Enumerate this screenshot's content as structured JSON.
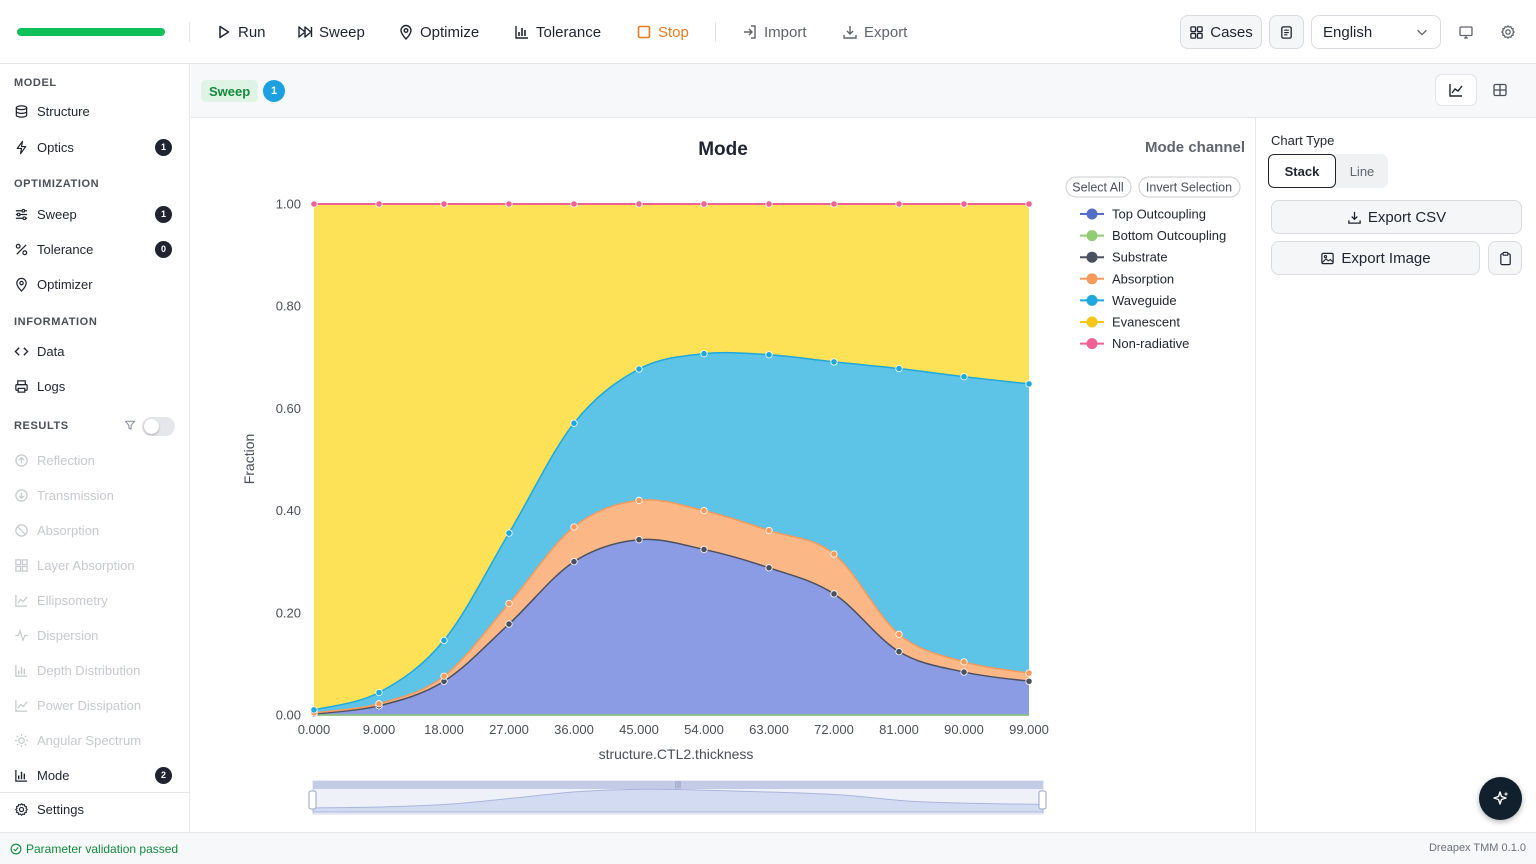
{
  "toolbar": {
    "progress": 1.0,
    "run": "Run",
    "sweep": "Sweep",
    "optimize": "Optimize",
    "tolerance": "Tolerance",
    "stop": "Stop",
    "import": "Import",
    "export": "Export",
    "cases": "Cases",
    "language": "English"
  },
  "sidebar": {
    "model_heading": "MODEL",
    "structure": "Structure",
    "optics": "Optics",
    "optics_count": "1",
    "optimization_heading": "OPTIMIZATION",
    "sweep": "Sweep",
    "sweep_count": "1",
    "tolerance": "Tolerance",
    "tolerance_count": "0",
    "optimizer": "Optimizer",
    "information_heading": "INFORMATION",
    "data": "Data",
    "logs": "Logs",
    "results_heading": "RESULTS",
    "results_toggle_on": false,
    "reflection": "Reflection",
    "transmission": "Transmission",
    "absorption": "Absorption",
    "layer_absorption": "Layer Absorption",
    "ellipsometry": "Ellipsometry",
    "dispersion": "Dispersion",
    "depth_distribution": "Depth Distribution",
    "power_dissipation": "Power Dissipation",
    "angular_spectrum": "Angular Spectrum",
    "mode": "Mode",
    "mode_count": "2",
    "settings": "Settings"
  },
  "subbar": {
    "tag": "Sweep",
    "tag_count": "1"
  },
  "legend": {
    "select_all": "Select All",
    "invert_selection": "Invert Selection"
  },
  "right_panel": {
    "chart_type_label": "Chart Type",
    "stack": "Stack",
    "line": "Line",
    "export_csv": "Export CSV",
    "export_image": "Export Image"
  },
  "status": {
    "message": "Parameter validation passed",
    "version": "Dreapex TMM 0.1.0"
  },
  "chart_data": {
    "type": "area",
    "stacked": true,
    "title": "Mode",
    "subtitle": "Mode channel",
    "xlabel": "structure.CTL2.thickness",
    "ylabel": "Fraction",
    "ylim": [
      0,
      1
    ],
    "x": [
      0,
      9,
      18,
      27,
      36,
      45,
      54,
      63,
      72,
      81,
      90,
      99
    ],
    "x_tick_labels": [
      "0.000",
      "9.000",
      "18.000",
      "27.000",
      "36.000",
      "45.000",
      "54.000",
      "63.000",
      "72.000",
      "81.000",
      "90.000",
      "99.000"
    ],
    "y_tick_labels": [
      "0.00",
      "0.20",
      "0.40",
      "0.60",
      "0.80",
      "1.00"
    ],
    "series": [
      {
        "name": "Top Outcoupling",
        "color": "#5470c6",
        "values": [
          0,
          0,
          0,
          0,
          0,
          0,
          0,
          0,
          0,
          0,
          0,
          0
        ]
      },
      {
        "name": "Bottom Outcoupling",
        "color": "#91cc75",
        "values": [
          0,
          0,
          0,
          0,
          0,
          0,
          0,
          0,
          0,
          0,
          0,
          0
        ]
      },
      {
        "name": "Substrate",
        "color": "#4a5060",
        "values": [
          0.002,
          0.018,
          0.066,
          0.178,
          0.3,
          0.343,
          0.324,
          0.288,
          0.237,
          0.124,
          0.084,
          0.066
        ]
      },
      {
        "name": "Absorption",
        "color": "#f79a5b",
        "values": [
          0.002,
          0.004,
          0.01,
          0.04,
          0.068,
          0.077,
          0.076,
          0.073,
          0.078,
          0.034,
          0.02,
          0.016
        ]
      },
      {
        "name": "Waveguide",
        "color": "#1fa8dc",
        "values": [
          0.006,
          0.022,
          0.07,
          0.138,
          0.203,
          0.257,
          0.307,
          0.344,
          0.376,
          0.52,
          0.558,
          0.566
        ]
      },
      {
        "name": "Evanescent",
        "color": "#f5c518",
        "values": [
          0.99,
          0.956,
          0.854,
          0.644,
          0.429,
          0.323,
          0.293,
          0.295,
          0.309,
          0.322,
          0.338,
          0.352
        ]
      },
      {
        "name": "Non-radiative",
        "color": "#f06292",
        "values": [
          0,
          0,
          0,
          0,
          0,
          0,
          0,
          0,
          0,
          0,
          0,
          0
        ]
      }
    ],
    "legend_position": "right",
    "grid": false,
    "data_zoom": true
  }
}
